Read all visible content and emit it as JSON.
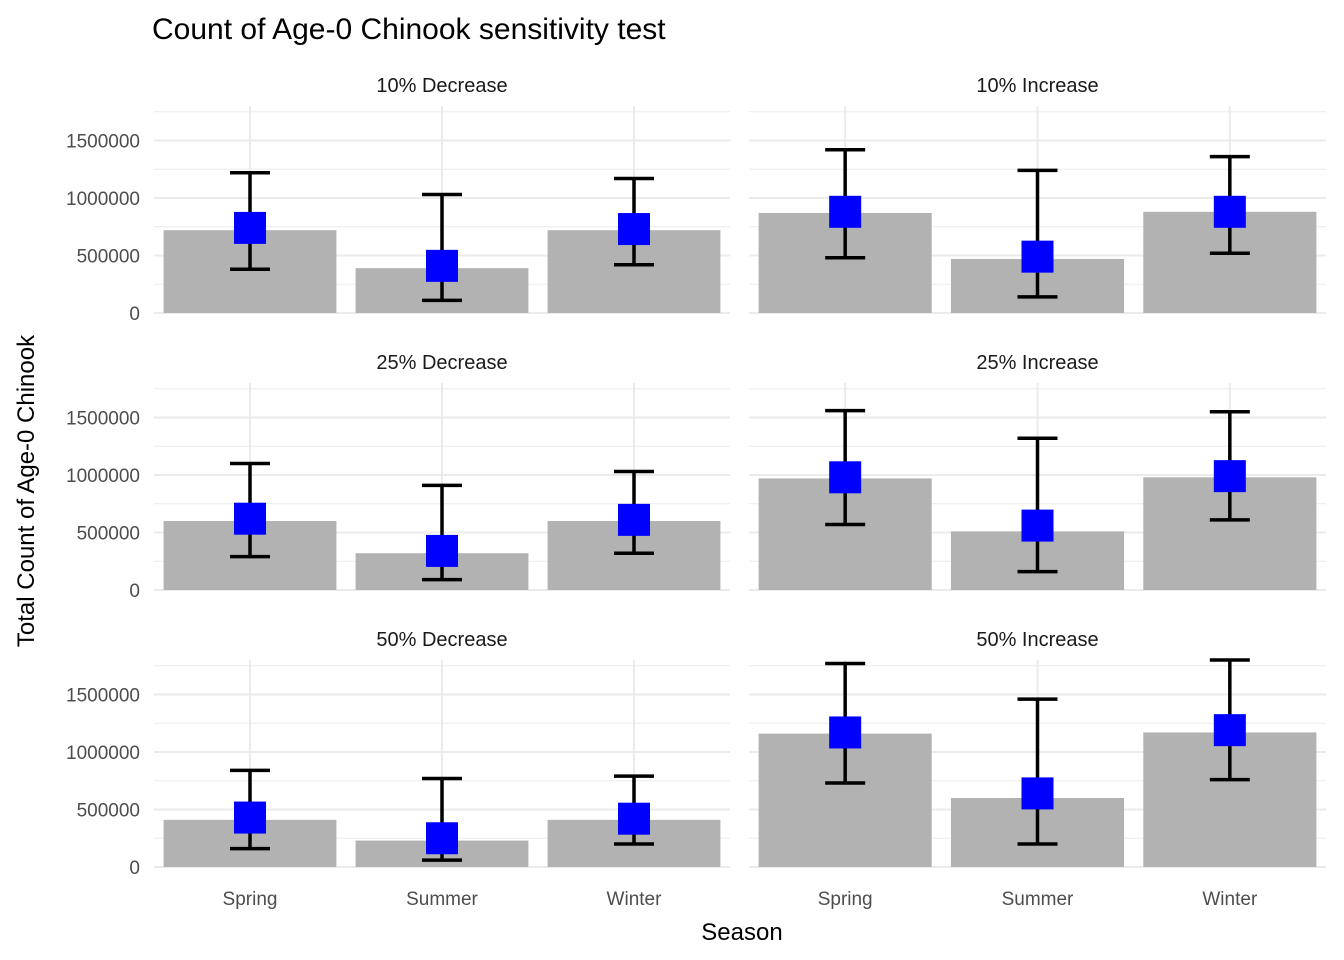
{
  "chart_data": {
    "type": "bar",
    "title": "Count of Age-0 Chinook sensitivity test",
    "xlabel": "Season",
    "ylabel": "Total Count of Age-0 Chinook",
    "categories": [
      "Spring",
      "Summer",
      "Winter"
    ],
    "ylim": [
      0,
      1800000
    ],
    "yticks": [
      0,
      500000,
      1000000,
      1500000
    ],
    "ytick_labels": [
      "0",
      "500000",
      "1000000",
      "1500000"
    ],
    "grid": true,
    "legend": "none",
    "colors": {
      "bar": "#b2b2b2",
      "point": "#0000ff",
      "errorbar": "#000000"
    },
    "panels": [
      {
        "label": "10% Decrease",
        "bars": [
          720000,
          390000,
          720000
        ],
        "points": [
          740000,
          410000,
          730000
        ],
        "lower": [
          380000,
          110000,
          420000
        ],
        "upper": [
          1220000,
          1030000,
          1170000
        ]
      },
      {
        "label": "10% Increase",
        "bars": [
          870000,
          470000,
          880000
        ],
        "points": [
          880000,
          490000,
          880000
        ],
        "lower": [
          480000,
          140000,
          520000
        ],
        "upper": [
          1420000,
          1240000,
          1360000
        ]
      },
      {
        "label": "25% Decrease",
        "bars": [
          600000,
          320000,
          600000
        ],
        "points": [
          620000,
          340000,
          610000
        ],
        "lower": [
          290000,
          90000,
          320000
        ],
        "upper": [
          1100000,
          910000,
          1030000
        ]
      },
      {
        "label": "25% Increase",
        "bars": [
          970000,
          510000,
          980000
        ],
        "points": [
          980000,
          560000,
          990000
        ],
        "lower": [
          570000,
          160000,
          610000
        ],
        "upper": [
          1560000,
          1320000,
          1550000
        ]
      },
      {
        "label": "50% Decrease",
        "bars": [
          410000,
          230000,
          410000
        ],
        "points": [
          430000,
          250000,
          420000
        ],
        "lower": [
          160000,
          60000,
          200000
        ],
        "upper": [
          840000,
          770000,
          790000
        ]
      },
      {
        "label": "50% Increase",
        "bars": [
          1160000,
          600000,
          1170000
        ],
        "points": [
          1170000,
          640000,
          1190000
        ],
        "lower": [
          730000,
          200000,
          760000
        ],
        "upper": [
          1770000,
          1460000,
          1800000
        ]
      }
    ]
  }
}
